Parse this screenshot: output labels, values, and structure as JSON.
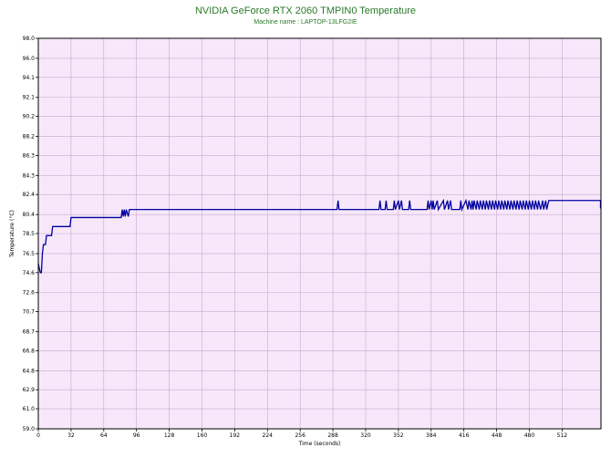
{
  "chart_data": {
    "type": "line",
    "title": "NVIDIA GeForce RTX 2060 TMPIN0 Temperature",
    "subtitle": "Machine name : LAPTOP-13LFG2IE",
    "xlabel": "Time (seconds)",
    "ylabel": "Temperature (°C)",
    "xlim": [
      0,
      550
    ],
    "ylim": [
      59.0,
      98.0
    ],
    "x_ticks": [
      "0",
      "32",
      "64",
      "96",
      "128",
      "160",
      "192",
      "224",
      "256",
      "288",
      "320",
      "352",
      "384",
      "416",
      "448",
      "480",
      "512"
    ],
    "y_ticks": [
      "98.0",
      "96.0",
      "94.1",
      "92.1",
      "90.2",
      "88.2",
      "86.3",
      "84.3",
      "82.4",
      "80.4",
      "78.5",
      "76.5",
      "74.6",
      "72.6",
      "70.7",
      "68.7",
      "66.8",
      "64.8",
      "62.9",
      "61.0",
      "59.0"
    ],
    "grid": true,
    "colors": {
      "line": "#0000a0",
      "plot_background": "#f6e8fa",
      "grid": "#c8a8d0",
      "title": "#2a7a2a"
    },
    "series": [
      {
        "values": [
          [
            0,
            75.5
          ],
          [
            1,
            75.0
          ],
          [
            2,
            74.6
          ],
          [
            3,
            74.6
          ],
          [
            4,
            76.5
          ],
          [
            5,
            77.4
          ],
          [
            7,
            77.4
          ],
          [
            8,
            78.3
          ],
          [
            13,
            78.3
          ],
          [
            14,
            79.2
          ],
          [
            31,
            79.2
          ],
          [
            32,
            80.1
          ],
          [
            81,
            80.1
          ],
          [
            82,
            80.9
          ],
          [
            83,
            80.2
          ],
          [
            84,
            80.9
          ],
          [
            85,
            80.2
          ],
          [
            86,
            80.9
          ],
          [
            88,
            80.2
          ],
          [
            89,
            80.9
          ],
          [
            91,
            80.9
          ],
          [
            292,
            80.9
          ],
          [
            293,
            81.8
          ],
          [
            294,
            80.9
          ],
          [
            333,
            80.9
          ],
          [
            334,
            81.8
          ],
          [
            335,
            80.9
          ],
          [
            339,
            80.9
          ],
          [
            340,
            81.8
          ],
          [
            341,
            80.9
          ],
          [
            347,
            80.9
          ],
          [
            348,
            81.8
          ],
          [
            349,
            80.9
          ],
          [
            352,
            81.8
          ],
          [
            353,
            80.9
          ],
          [
            355,
            81.8
          ],
          [
            356,
            80.9
          ],
          [
            362,
            80.9
          ],
          [
            363,
            81.8
          ],
          [
            364,
            80.9
          ],
          [
            380,
            80.9
          ],
          [
            381,
            81.8
          ],
          [
            382,
            80.9
          ],
          [
            384,
            81.8
          ],
          [
            385,
            80.9
          ],
          [
            386,
            81.8
          ],
          [
            387,
            80.9
          ],
          [
            390,
            81.8
          ],
          [
            391,
            80.9
          ],
          [
            396,
            81.8
          ],
          [
            397,
            80.9
          ],
          [
            400,
            81.8
          ],
          [
            401,
            80.9
          ],
          [
            403,
            81.8
          ],
          [
            404,
            80.9
          ],
          [
            412,
            80.9
          ],
          [
            413,
            81.8
          ],
          [
            414,
            80.9
          ],
          [
            418,
            81.8
          ],
          [
            420,
            80.9
          ],
          [
            421,
            81.8
          ],
          [
            423,
            80.9
          ],
          [
            424,
            81.8
          ],
          [
            425,
            80.9
          ],
          [
            426,
            81.8
          ],
          [
            428,
            80.9
          ],
          [
            429,
            81.8
          ],
          [
            431,
            80.9
          ],
          [
            432,
            81.8
          ],
          [
            434,
            80.9
          ],
          [
            435,
            81.8
          ],
          [
            437,
            80.9
          ],
          [
            438,
            81.8
          ],
          [
            440,
            80.9
          ],
          [
            441,
            81.8
          ],
          [
            443,
            80.9
          ],
          [
            444,
            81.8
          ],
          [
            446,
            80.9
          ],
          [
            447,
            81.8
          ],
          [
            449,
            80.9
          ],
          [
            450,
            81.8
          ],
          [
            452,
            80.9
          ],
          [
            453,
            81.8
          ],
          [
            455,
            80.9
          ],
          [
            456,
            81.8
          ],
          [
            458,
            80.9
          ],
          [
            459,
            81.8
          ],
          [
            461,
            80.9
          ],
          [
            462,
            81.8
          ],
          [
            464,
            80.9
          ],
          [
            465,
            81.8
          ],
          [
            467,
            80.9
          ],
          [
            468,
            81.8
          ],
          [
            470,
            80.9
          ],
          [
            471,
            81.8
          ],
          [
            473,
            80.9
          ],
          [
            474,
            81.8
          ],
          [
            476,
            80.9
          ],
          [
            477,
            81.8
          ],
          [
            479,
            80.9
          ],
          [
            480,
            81.8
          ],
          [
            482,
            80.9
          ],
          [
            483,
            81.8
          ],
          [
            485,
            80.9
          ],
          [
            486,
            81.8
          ],
          [
            488,
            80.9
          ],
          [
            489,
            81.8
          ],
          [
            491,
            80.9
          ],
          [
            493,
            81.8
          ],
          [
            494,
            80.9
          ],
          [
            496,
            81.8
          ],
          [
            497,
            80.9
          ],
          [
            499,
            81.8
          ],
          [
            550,
            81.8
          ],
          [
            550,
            81.0
          ],
          [
            550,
            81.8
          ]
        ]
      }
    ]
  }
}
